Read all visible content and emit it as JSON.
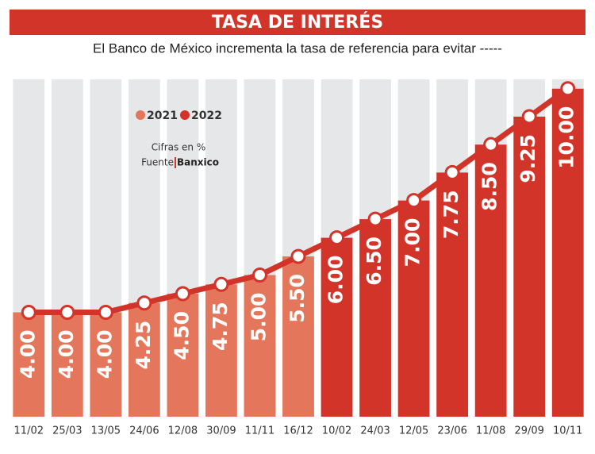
{
  "chart_data": {
    "type": "bar",
    "title": "TASA DE INTERÉS",
    "subtitle": "El Banco de México incrementa la tasa de referencia para evitar -----",
    "categories": [
      "11/02",
      "25/03",
      "13/05",
      "24/06",
      "12/08",
      "30/09",
      "11/11",
      "16/12",
      "10/02",
      "24/03",
      "12/05",
      "23/06",
      "11/08",
      "29/09",
      "10/11"
    ],
    "values": [
      4,
      4,
      4,
      4.25,
      4.5,
      4.75,
      5,
      5.5,
      6,
      6.5,
      7,
      7.75,
      8.5,
      9.25,
      10
    ],
    "value_labels": [
      "4.00",
      "4.00",
      "4.00",
      "4.25",
      "4.50",
      "4.75",
      "5.00",
      "5.50",
      "6.00",
      "6.50",
      "7.00",
      "7.75",
      "8.50",
      "9.25",
      "10.00"
    ],
    "bar_colors": [
      "#e4775b",
      "#e4775b",
      "#e4775b",
      "#e4775b",
      "#e4775b",
      "#e4775b",
      "#e4775b",
      "#e4775b",
      "#d3342a",
      "#d3342a",
      "#d3342a",
      "#d3342a",
      "#d3342a",
      "#d3342a",
      "#d3342a"
    ],
    "line_color": "#d3342a",
    "legend": [
      {
        "name": "2021",
        "color": "#e4775b"
      },
      {
        "name": "2022",
        "color": "#d3342a"
      }
    ],
    "note": "Cifras en %",
    "source_label": "Fuente",
    "source": "Banxico",
    "ylim": [
      1.2,
      10.25
    ]
  }
}
